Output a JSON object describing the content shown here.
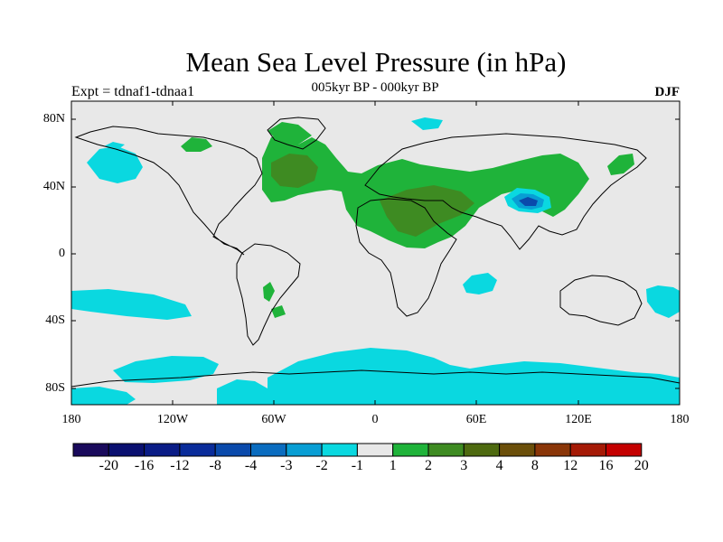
{
  "title": "Mean Sea Level Pressure (in hPa)",
  "subtitle": "005kyr BP - 000kyr BP",
  "left_label": "Expt = tdnaf1-tdnaa1",
  "right_label": "DJF",
  "lat_labels": [
    "80N",
    "40N",
    "0",
    "40S",
    "80S"
  ],
  "lon_labels": [
    "180",
    "120W",
    "60W",
    "0",
    "60E",
    "120E",
    "180"
  ],
  "colorbar": {
    "labels": [
      "-20",
      "-16",
      "-12",
      "-8",
      "-4",
      "-3",
      "-2",
      "-1",
      "1",
      "2",
      "3",
      "4",
      "8",
      "12",
      "16",
      "20"
    ],
    "colors": [
      "#1a0a5c",
      "#0a1070",
      "#0a1c86",
      "#0a2c9a",
      "#0a4aab",
      "#0a6cbf",
      "#089ed4",
      "#0ad8e0",
      "#e8e8e8",
      "#1fb33a",
      "#3e8b22",
      "#4e6a10",
      "#6b4f0a",
      "#8a3608",
      "#a51a06",
      "#c40000"
    ]
  },
  "colors": {
    "background": "#e8e8e8",
    "neg_light": "#0ad8e0",
    "neg_mid": "#089ed4",
    "neg_dark": "#0a4aab",
    "pos_light": "#1fb33a",
    "pos_mid": "#3e8b22",
    "pos_dark": "#4e6a10"
  }
}
